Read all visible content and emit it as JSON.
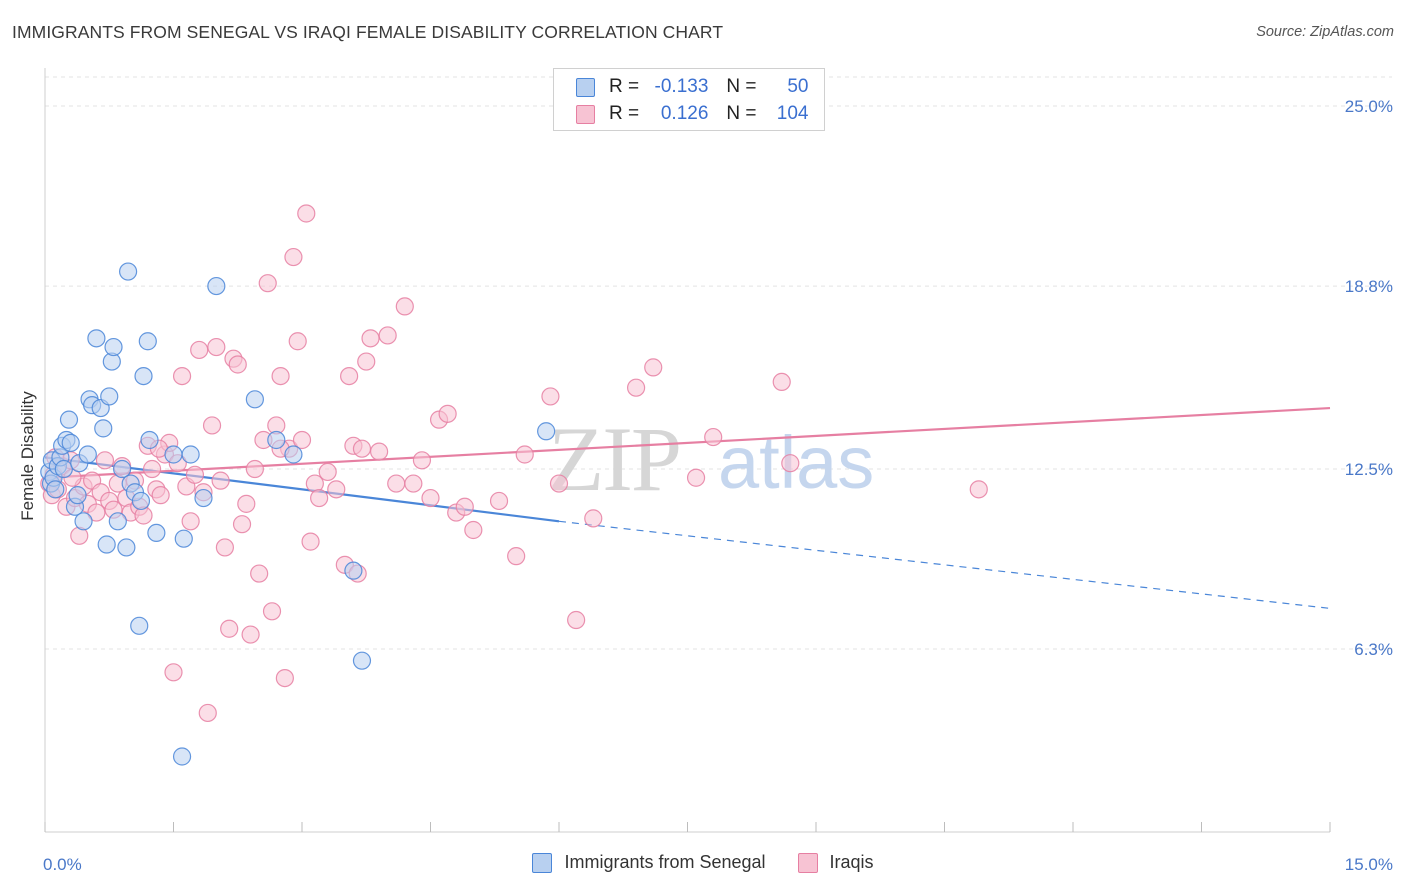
{
  "title": "IMMIGRANTS FROM SENEGAL VS IRAQI FEMALE DISABILITY CORRELATION CHART",
  "source": "Source: ZipAtlas.com",
  "watermark": {
    "zip": "ZIP",
    "atlas": "atlas"
  },
  "legend_top": {
    "rows": [
      {
        "r_label": "R =",
        "r_value": "-0.133",
        "n_label": "N =",
        "n_value": "50",
        "color": "#4a86d8",
        "fill": "#b8d0f0"
      },
      {
        "r_label": "R =",
        "r_value": "0.126",
        "n_label": "N =",
        "n_value": "104",
        "color": "#e67fa2",
        "fill": "#f7c3d3"
      }
    ]
  },
  "legend_bottom": [
    {
      "label": "Immigrants from Senegal",
      "color": "#4a86d8",
      "fill": "#b8d0f0"
    },
    {
      "label": "Iraqis",
      "color": "#e67fa2",
      "fill": "#f7c3d3"
    }
  ],
  "chart_data": {
    "type": "scatter",
    "title": "IMMIGRANTS FROM SENEGAL VS IRAQI FEMALE DISABILITY CORRELATION CHART",
    "xlabel": "",
    "ylabel": "Female Disability",
    "xlim": [
      0,
      15
    ],
    "ylim": [
      0,
      26
    ],
    "x_tick_labels": [
      {
        "value": 0,
        "label": "0.0%"
      },
      {
        "value": 15,
        "label": "15.0%"
      }
    ],
    "x_minor_ticks": [
      0,
      1.5,
      3,
      4.5,
      6,
      7.5,
      9,
      10.5,
      12,
      13.5,
      15
    ],
    "y_ticks": [
      {
        "value": 6.3,
        "label": "6.3%"
      },
      {
        "value": 12.5,
        "label": "12.5%"
      },
      {
        "value": 18.8,
        "label": "18.8%"
      },
      {
        "value": 25.0,
        "label": "25.0%"
      }
    ],
    "grid": true,
    "series": [
      {
        "name": "Immigrants from Senegal",
        "color": "#4a86d8",
        "fill": "#b8d0f0",
        "points": [
          [
            0.05,
            12.4
          ],
          [
            0.07,
            12.0
          ],
          [
            0.08,
            12.8
          ],
          [
            0.1,
            12.2
          ],
          [
            0.12,
            11.8
          ],
          [
            0.15,
            12.6
          ],
          [
            0.18,
            12.9
          ],
          [
            0.2,
            13.3
          ],
          [
            0.22,
            12.5
          ],
          [
            0.25,
            13.5
          ],
          [
            0.28,
            14.2
          ],
          [
            0.3,
            13.4
          ],
          [
            0.35,
            11.2
          ],
          [
            0.38,
            11.6
          ],
          [
            0.4,
            12.7
          ],
          [
            0.45,
            10.7
          ],
          [
            0.5,
            13.0
          ],
          [
            0.52,
            14.9
          ],
          [
            0.55,
            14.7
          ],
          [
            0.6,
            17.0
          ],
          [
            0.65,
            14.6
          ],
          [
            0.68,
            13.9
          ],
          [
            0.72,
            9.9
          ],
          [
            0.75,
            15.0
          ],
          [
            0.78,
            16.2
          ],
          [
            0.8,
            16.7
          ],
          [
            0.85,
            10.7
          ],
          [
            0.9,
            12.5
          ],
          [
            0.95,
            9.8
          ],
          [
            0.97,
            19.3
          ],
          [
            1.0,
            12.0
          ],
          [
            1.05,
            11.7
          ],
          [
            1.1,
            7.1
          ],
          [
            1.12,
            11.4
          ],
          [
            1.15,
            15.7
          ],
          [
            1.2,
            16.9
          ],
          [
            1.22,
            13.5
          ],
          [
            1.3,
            10.3
          ],
          [
            1.5,
            13.0
          ],
          [
            1.6,
            2.6
          ],
          [
            1.62,
            10.1
          ],
          [
            1.7,
            13.0
          ],
          [
            1.85,
            11.5
          ],
          [
            2.0,
            18.8
          ],
          [
            2.45,
            14.9
          ],
          [
            2.7,
            13.5
          ],
          [
            2.9,
            13.0
          ],
          [
            3.6,
            9.0
          ],
          [
            3.7,
            5.9
          ],
          [
            5.85,
            13.8
          ]
        ],
        "trend": {
          "x1": 0,
          "y1": 12.9,
          "x2": 6.0,
          "y2": 10.7,
          "dash_to_x": 15,
          "dash_to_y": 7.7
        }
      },
      {
        "name": "Iraqis",
        "color": "#e67fa2",
        "fill": "#f7c3d3",
        "points": [
          [
            0.05,
            12.0
          ],
          [
            0.08,
            11.6
          ],
          [
            0.1,
            12.3
          ],
          [
            0.15,
            11.8
          ],
          [
            0.2,
            12.6
          ],
          [
            0.25,
            11.2
          ],
          [
            0.3,
            12.8
          ],
          [
            0.35,
            11.5
          ],
          [
            0.4,
            10.2
          ],
          [
            0.45,
            11.9
          ],
          [
            0.5,
            11.3
          ],
          [
            0.55,
            12.1
          ],
          [
            0.6,
            11.0
          ],
          [
            0.65,
            11.7
          ],
          [
            0.7,
            12.8
          ],
          [
            0.75,
            11.4
          ],
          [
            0.8,
            11.1
          ],
          [
            0.85,
            12.0
          ],
          [
            0.9,
            12.6
          ],
          [
            0.95,
            11.5
          ],
          [
            1.0,
            11.0
          ],
          [
            1.05,
            12.1
          ],
          [
            1.1,
            11.2
          ],
          [
            1.15,
            10.9
          ],
          [
            1.2,
            13.3
          ],
          [
            1.25,
            12.5
          ],
          [
            1.3,
            11.8
          ],
          [
            1.35,
            11.6
          ],
          [
            1.4,
            13.0
          ],
          [
            1.45,
            13.4
          ],
          [
            1.5,
            5.5
          ],
          [
            1.55,
            12.7
          ],
          [
            1.6,
            15.7
          ],
          [
            1.65,
            11.9
          ],
          [
            1.7,
            10.7
          ],
          [
            1.75,
            12.3
          ],
          [
            1.8,
            16.6
          ],
          [
            1.85,
            11.7
          ],
          [
            1.9,
            4.1
          ],
          [
            1.95,
            14.0
          ],
          [
            2.0,
            16.7
          ],
          [
            2.05,
            12.1
          ],
          [
            2.1,
            9.8
          ],
          [
            2.15,
            7.0
          ],
          [
            2.2,
            16.3
          ],
          [
            2.25,
            16.1
          ],
          [
            2.3,
            10.6
          ],
          [
            2.35,
            11.3
          ],
          [
            2.4,
            6.8
          ],
          [
            2.45,
            12.5
          ],
          [
            2.5,
            8.9
          ],
          [
            2.55,
            13.5
          ],
          [
            2.6,
            18.9
          ],
          [
            2.65,
            7.6
          ],
          [
            2.7,
            14.0
          ],
          [
            2.75,
            15.7
          ],
          [
            2.8,
            5.3
          ],
          [
            2.85,
            13.2
          ],
          [
            2.9,
            19.8
          ],
          [
            2.95,
            16.9
          ],
          [
            3.0,
            13.5
          ],
          [
            3.05,
            21.3
          ],
          [
            3.1,
            10.0
          ],
          [
            3.15,
            12.0
          ],
          [
            3.2,
            11.5
          ],
          [
            3.3,
            12.4
          ],
          [
            3.4,
            11.8
          ],
          [
            3.5,
            9.2
          ],
          [
            3.55,
            15.7
          ],
          [
            3.6,
            13.3
          ],
          [
            3.65,
            8.9
          ],
          [
            3.7,
            13.2
          ],
          [
            3.75,
            16.2
          ],
          [
            3.8,
            17.0
          ],
          [
            3.9,
            13.1
          ],
          [
            4.0,
            17.1
          ],
          [
            4.1,
            12.0
          ],
          [
            4.2,
            18.1
          ],
          [
            4.3,
            12.0
          ],
          [
            4.4,
            12.8
          ],
          [
            4.5,
            11.5
          ],
          [
            4.6,
            14.2
          ],
          [
            4.7,
            14.4
          ],
          [
            4.8,
            11.0
          ],
          [
            4.9,
            11.2
          ],
          [
            5.0,
            10.4
          ],
          [
            5.3,
            11.4
          ],
          [
            5.5,
            9.5
          ],
          [
            5.6,
            13.0
          ],
          [
            5.9,
            15.0
          ],
          [
            6.0,
            12.0
          ],
          [
            6.2,
            7.3
          ],
          [
            6.4,
            10.8
          ],
          [
            6.9,
            15.3
          ],
          [
            7.1,
            16.0
          ],
          [
            7.6,
            12.2
          ],
          [
            7.8,
            13.6
          ],
          [
            8.6,
            15.5
          ],
          [
            8.7,
            12.7
          ],
          [
            10.9,
            11.8
          ],
          [
            0.12,
            12.9
          ],
          [
            0.32,
            12.2
          ],
          [
            1.33,
            13.2
          ],
          [
            2.75,
            13.2
          ]
        ],
        "trend": {
          "x1": 0,
          "y1": 12.2,
          "x2": 15,
          "y2": 14.6
        }
      }
    ]
  }
}
